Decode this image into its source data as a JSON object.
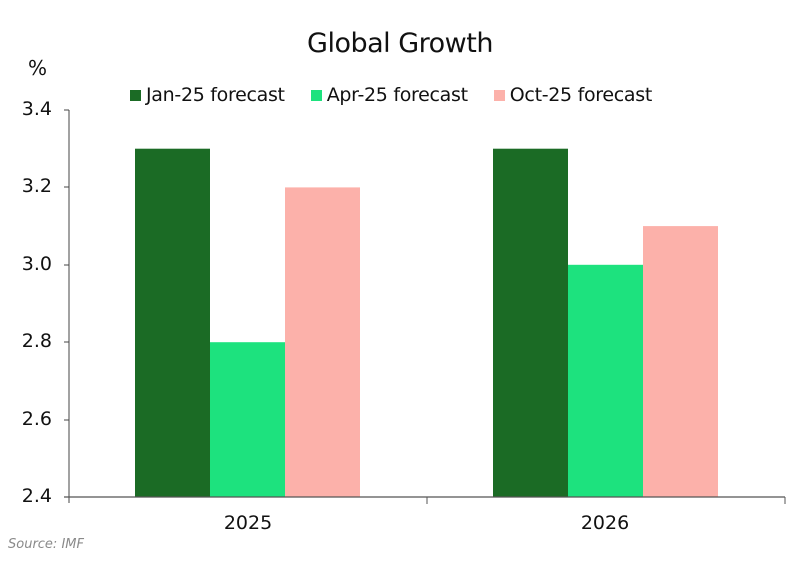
{
  "chart_data": {
    "type": "bar",
    "title": "Global Growth",
    "ylabel": "%",
    "xlabel": "",
    "categories": [
      "2025",
      "2026"
    ],
    "series": [
      {
        "name": "Jan-25 forecast",
        "color": "#1b6b25",
        "values": [
          3.3,
          3.3
        ]
      },
      {
        "name": "Apr-25 forecast",
        "color": "#1de27e",
        "values": [
          2.8,
          3.0
        ]
      },
      {
        "name": "Oct-25 forecast",
        "color": "#fcb1aa",
        "values": [
          3.2,
          3.1
        ]
      }
    ],
    "ylim": [
      2.4,
      3.4
    ],
    "yticks": [
      "3.4",
      "3.2",
      "3.0",
      "2.8",
      "2.6",
      "2.4"
    ],
    "grid": false,
    "legend_position": "top",
    "source": "Source: IMF"
  }
}
